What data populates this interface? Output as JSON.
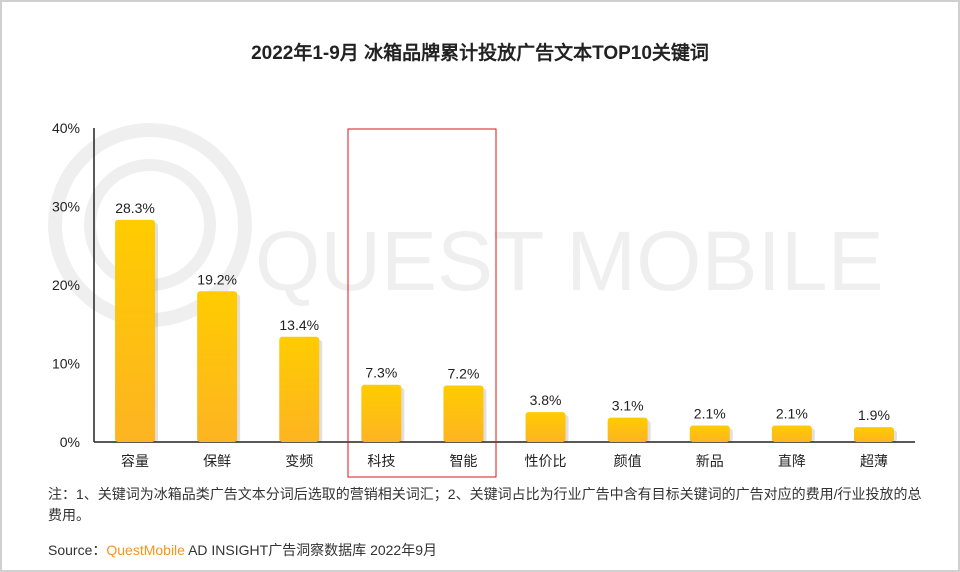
{
  "title": "2022年1-9月 冰箱品牌累计投放广告文本TOP10关键词",
  "watermark": "QUEST MOBILE",
  "chart_data": {
    "type": "bar",
    "title": "2022年1-9月 冰箱品牌累计投放广告文本TOP10关键词",
    "categories": [
      "容量",
      "保鲜",
      "变频",
      "科技",
      "智能",
      "性价比",
      "颜值",
      "新品",
      "直降",
      "超薄"
    ],
    "values": [
      28.3,
      19.2,
      13.4,
      7.3,
      7.2,
      3.8,
      3.1,
      2.1,
      2.1,
      1.9
    ],
    "data_labels": [
      "28.3%",
      "19.2%",
      "13.4%",
      "7.3%",
      "7.2%",
      "3.8%",
      "3.1%",
      "2.1%",
      "2.1%",
      "1.9%"
    ],
    "ylim": [
      0,
      40
    ],
    "yticks": [
      "0%",
      "10%",
      "20%",
      "30%",
      "40%"
    ],
    "ytick_values": [
      0,
      10,
      20,
      30,
      40
    ],
    "grid": false,
    "highlighted_categories": [
      "科技",
      "智能"
    ],
    "colors": {
      "bar_top": "#ffcc00",
      "bar_bottom": "#fdb422",
      "highlight_box": "#d9161c"
    }
  },
  "note": "注：1、关键词为冰箱品类广告文本分词后选取的营销相关词汇；2、关键词占比为行业广告中含有目标关键词的广告对应的费用/行业投放的总费用。",
  "source": {
    "label": "Source：",
    "brand": "QuestMobile",
    "text": " AD INSIGHT广告洞察数据库 2022年9月"
  }
}
